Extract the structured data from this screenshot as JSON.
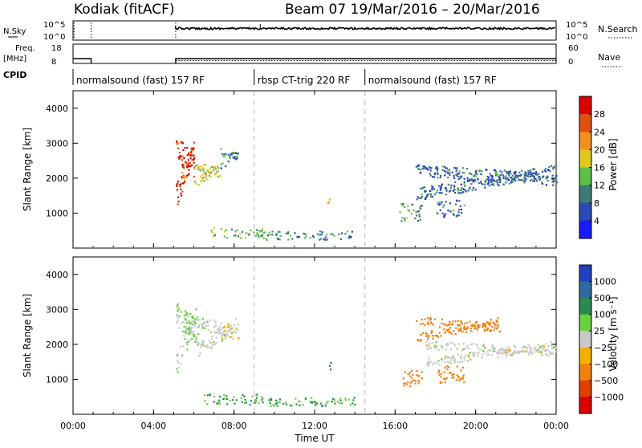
{
  "header": {
    "station": "Kodiak (fitACF)",
    "beam_date": "Beam 07  19/Mar/2016 – 20/Mar/2016"
  },
  "status_panels": {
    "nsky_label": "N.Sky",
    "nsky_ticks": [
      "10^5",
      "10^0"
    ],
    "nsearch_ticks": [
      "10^5",
      "10^0"
    ],
    "nsearch_label": "N.Search",
    "freq_label_1": "Freq.",
    "freq_label_2": "[MHz]",
    "freq_ticks": [
      "18",
      "8"
    ],
    "nave_ticks": [
      "60",
      "0"
    ],
    "nave_label": "Nave",
    "cpid_label": "CPID",
    "cpid_segments": [
      {
        "label": "normalsound (fast) 157 RF",
        "start_h": 0,
        "end_h": 9.0
      },
      {
        "label": "rbsp CT-trig 220 RF",
        "start_h": 9.0,
        "end_h": 14.5
      },
      {
        "label": "normalsound (fast) 157 RF",
        "start_h": 14.5,
        "end_h": 24
      }
    ]
  },
  "chart_data": [
    {
      "type": "heatmap",
      "ylabel": "Slant Range [km]",
      "x_range_h": [
        0,
        24
      ],
      "ylim": [
        0,
        4500
      ],
      "y_ticks": [
        1000,
        2000,
        3000,
        4000
      ],
      "colorbar_label": "Power [dB]",
      "colorbar_ticks": [
        "4",
        "8",
        "12",
        "16",
        "20",
        "24",
        "28"
      ],
      "colorbar_colors": [
        "#1a1aff",
        "#2a4ab5",
        "#3c7a78",
        "#5cbf4a",
        "#ddc820",
        "#f09020",
        "#e05010",
        "#dd0000"
      ],
      "mode_change_hours": [
        9.0,
        14.5
      ],
      "echo_regions": [
        {
          "h0": 5.1,
          "h1": 6.0,
          "r0": 1200,
          "r1": 3200,
          "value": 28
        },
        {
          "h0": 6.0,
          "h1": 7.3,
          "r0": 1700,
          "r1": 2500,
          "value": 18
        },
        {
          "h0": 7.3,
          "h1": 8.2,
          "r0": 2200,
          "r1": 2900,
          "value": 10
        },
        {
          "h0": 6.8,
          "h1": 9.5,
          "r0": 300,
          "r1": 600,
          "value": 14
        },
        {
          "h0": 9.5,
          "h1": 14.0,
          "r0": 250,
          "r1": 500,
          "value": 10
        },
        {
          "h0": 12.6,
          "h1": 12.8,
          "r0": 1300,
          "r1": 1600,
          "value": 16
        },
        {
          "h0": 16.2,
          "h1": 17.3,
          "r0": 800,
          "r1": 1300,
          "value": 12
        },
        {
          "h0": 17.0,
          "h1": 24.0,
          "r0": 1400,
          "r1": 2400,
          "value": 8
        },
        {
          "h0": 18.0,
          "h1": 19.4,
          "r0": 900,
          "r1": 1400,
          "value": 8
        }
      ]
    },
    {
      "type": "heatmap",
      "ylabel": "Slant Range [km]",
      "xlabel": "Time UT",
      "x_range_h": [
        0,
        24
      ],
      "x_ticks": [
        "00:00",
        "04:00",
        "08:00",
        "12:00",
        "16:00",
        "20:00",
        "00:00"
      ],
      "ylim": [
        0,
        4500
      ],
      "y_ticks": [
        1000,
        2000,
        3000,
        4000
      ],
      "colorbar_label": "Velocity [m s⁻¹]",
      "colorbar_ticks": [
        "1000",
        "500",
        "100",
        "25",
        "−25",
        "−100",
        "−500",
        "−1000"
      ],
      "colorbar_colors": [
        "#2040c0",
        "#2f6aa0",
        "#2a8a50",
        "#6ad040",
        "#c8c8c8",
        "#f0b000",
        "#f08010",
        "#e04000",
        "#dd0000"
      ],
      "mode_change_hours": [
        9.0,
        14.5
      ],
      "echo_regions": [
        {
          "h0": 5.1,
          "h1": 6.2,
          "r0": 1200,
          "r1": 3200,
          "value": 25
        },
        {
          "h0": 6.2,
          "h1": 8.2,
          "r0": 1700,
          "r1": 2800,
          "value": 0
        },
        {
          "h0": 6.5,
          "h1": 9.5,
          "r0": 300,
          "r1": 600,
          "value": 100
        },
        {
          "h0": 9.5,
          "h1": 14.0,
          "r0": 250,
          "r1": 500,
          "value": 100
        },
        {
          "h0": 12.6,
          "h1": 12.8,
          "r0": 1300,
          "r1": 1600,
          "value": 500
        },
        {
          "h0": 16.3,
          "h1": 17.3,
          "r0": 800,
          "r1": 1300,
          "value": -300
        },
        {
          "h0": 17.0,
          "h1": 21.2,
          "r0": 2100,
          "r1": 2800,
          "value": -300
        },
        {
          "h0": 17.5,
          "h1": 24.0,
          "r0": 1400,
          "r1": 2100,
          "value": 0
        },
        {
          "h0": 18.0,
          "h1": 19.4,
          "r0": 900,
          "r1": 1400,
          "value": -300
        }
      ]
    }
  ]
}
